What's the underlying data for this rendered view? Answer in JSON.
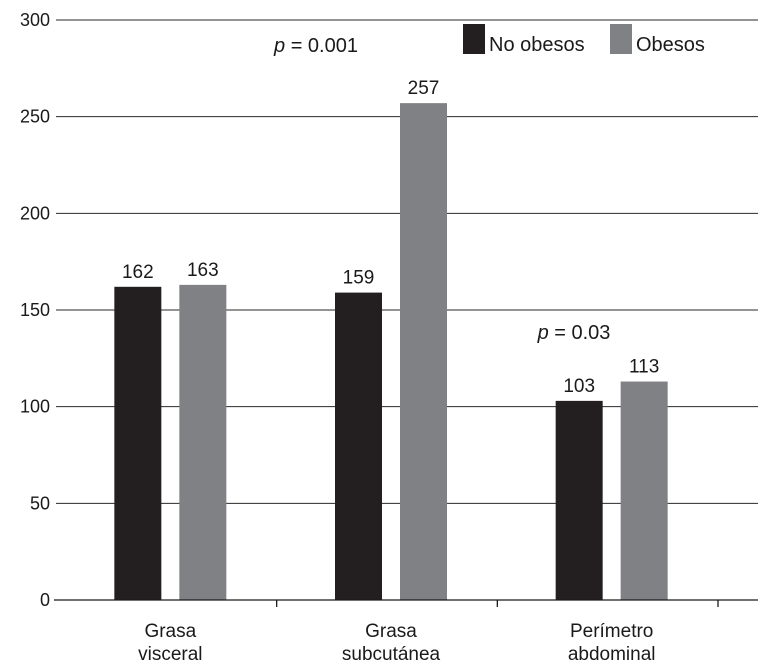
{
  "colors": {
    "no_obesos": "#231f20",
    "obesos": "#808184"
  },
  "legend_icons": [
    "black-square-icon",
    "gray-square-icon"
  ],
  "chart_data": {
    "type": "bar",
    "categories": [
      [
        "Grasa",
        "visceral"
      ],
      [
        "Grasa",
        "subcutánea"
      ],
      [
        "Perímetro",
        "abdominal"
      ]
    ],
    "series": [
      {
        "name": "No obesos",
        "values": [
          162,
          159,
          103
        ]
      },
      {
        "name": "Obesos",
        "values": [
          163,
          257,
          113
        ]
      }
    ],
    "data_labels": [
      [
        "162",
        "159",
        "103"
      ],
      [
        "163",
        "257",
        "113"
      ]
    ],
    "yticks": [
      "0",
      "50",
      "100",
      "150",
      "200",
      "250",
      "300"
    ],
    "ylim": [
      0,
      300
    ],
    "grid": true,
    "legend_position": "top-right",
    "annotations": [
      {
        "p": "p",
        "text": " = 0.001",
        "category": 1
      },
      {
        "p": "p",
        "text": " = 0.03",
        "category": 2
      }
    ]
  }
}
